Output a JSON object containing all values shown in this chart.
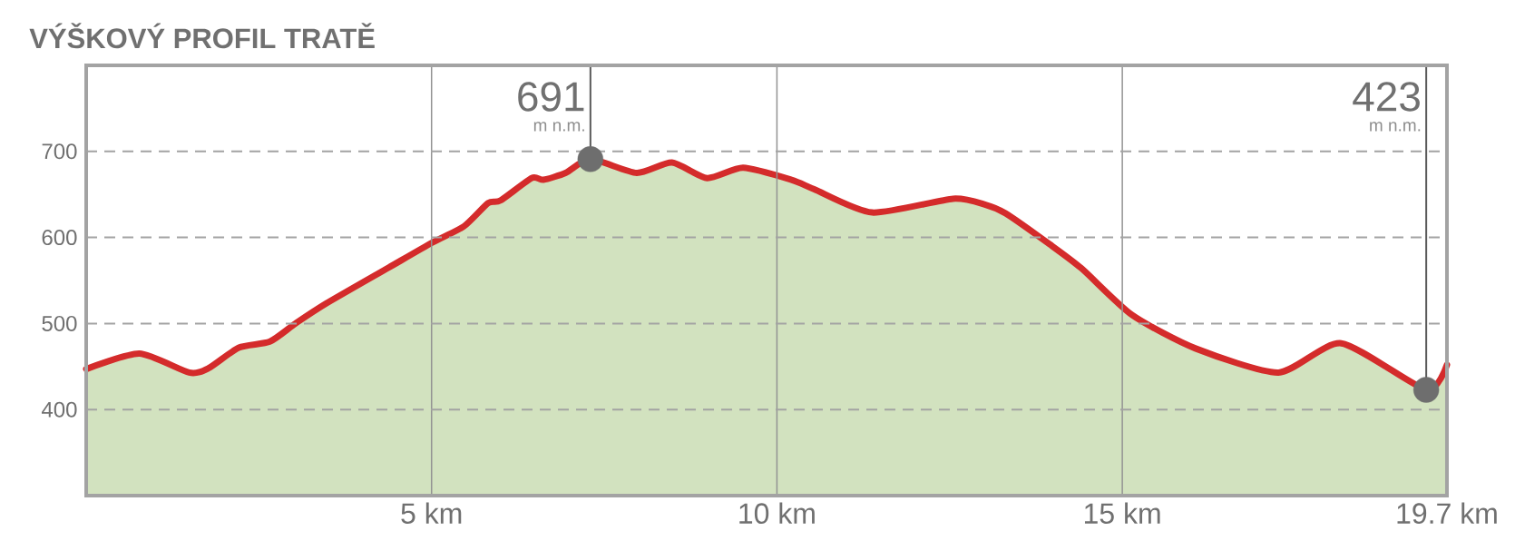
{
  "chart_data": {
    "type": "area",
    "title": "VÝŠKOVÝ PROFIL TRATĚ",
    "xlim": [
      0,
      19.7
    ],
    "ylim": [
      300,
      800
    ],
    "xticks": [
      {
        "value": 5,
        "label": "5 km"
      },
      {
        "value": 10,
        "label": "10 km"
      },
      {
        "value": 15,
        "label": "15 km"
      },
      {
        "value": 19.7,
        "label": "19.7 km"
      }
    ],
    "yticks": [
      400,
      500,
      600,
      700
    ],
    "grid": true,
    "series": [
      {
        "color": "#d42b2b",
        "x": [
          0,
          0.77,
          1.49,
          1.77,
          2.21,
          2.66,
          3.03,
          3.47,
          4.38,
          5.01,
          5.47,
          5.82,
          6.0,
          6.45,
          6.62,
          6.94,
          7.3,
          7.97,
          8.48,
          8.99,
          9.51,
          10.21,
          10.54,
          11.38,
          12.55,
          13.02,
          13.31,
          13.95,
          14.41,
          15.14,
          16.06,
          17.26,
          18.17,
          19.4,
          19.7
        ],
        "values": [
          447,
          465,
          443,
          448,
          472,
          479,
          500,
          523,
          565,
          594,
          613,
          640,
          643,
          669,
          667,
          675,
          691,
          675,
          687,
          669,
          681,
          667,
          656,
          629,
          645,
          638,
          628,
          592,
          564,
          510,
          471,
          443,
          477,
          423,
          452
        ]
      },
      {
        "type": "scatter",
        "color": "#6e6e6e",
        "marker": "circle",
        "x": [
          7.3,
          19.4
        ],
        "values": [
          691,
          423
        ]
      }
    ],
    "annotations": [
      {
        "text": "691",
        "x": 7.3,
        "y": 691
      },
      "m n.m.",
      {
        "text": "423",
        "x": 19.4,
        "y": 423
      },
      "m n.m."
    ]
  }
}
